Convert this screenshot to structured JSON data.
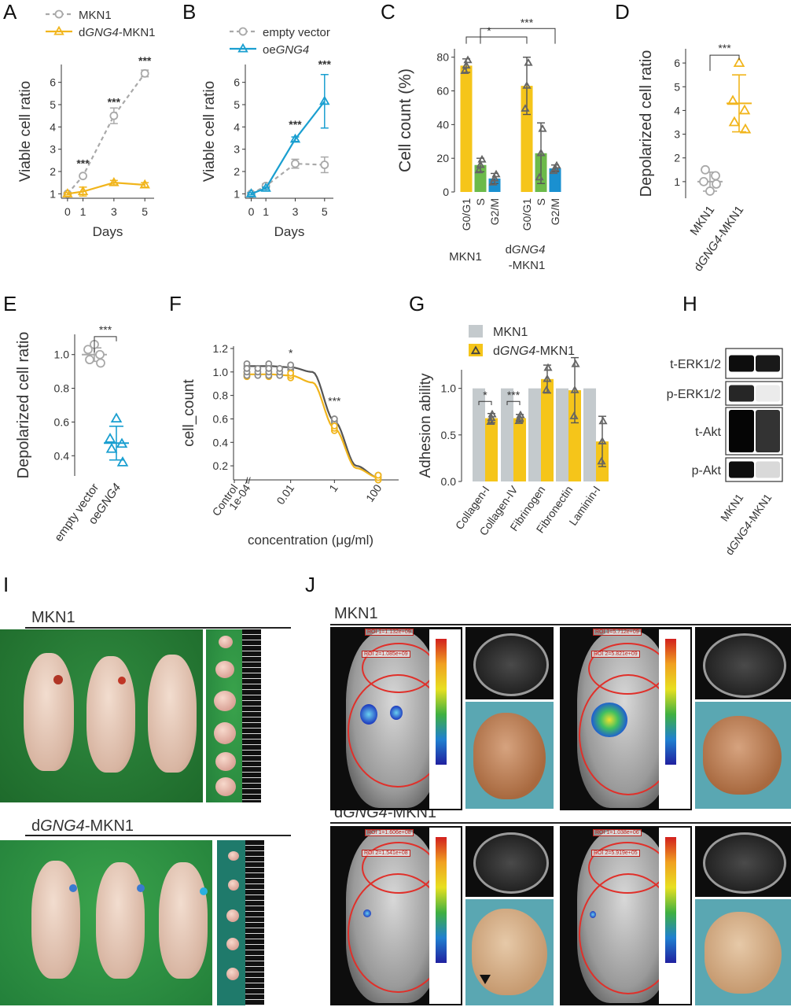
{
  "panels": {
    "A": {
      "label": "A",
      "chart_data": {
        "type": "line",
        "x": [
          0,
          1,
          3,
          5
        ],
        "xlabel": "Days",
        "ylabel": "Viable cell ratio",
        "ylim": [
          0.8,
          6.8
        ],
        "yticks": [
          1,
          2,
          3,
          4,
          5,
          6
        ],
        "series": [
          {
            "name": "MKN1",
            "values": [
              1.0,
              1.8,
              4.5,
              6.4
            ],
            "err": [
              0.05,
              0.05,
              0.35,
              0.15
            ],
            "color": "#a9a9a9",
            "marker": "circle",
            "dash": true
          },
          {
            "name": "dGNG4-MKN1",
            "values": [
              1.0,
              1.1,
              1.5,
              1.4
            ],
            "err": [
              0.05,
              0.2,
              0.1,
              0.1
            ],
            "color": "#f1b51c",
            "marker": "triangle",
            "dash": false
          }
        ],
        "legend": [
          {
            "prefix": "MKN1",
            "italic": "",
            "suffix": ""
          },
          {
            "prefix": "d",
            "italic": "GNG4",
            "suffix": "-MKN1"
          }
        ],
        "annotations": [
          {
            "x": 1,
            "y": 2.2,
            "text": "***"
          },
          {
            "x": 3,
            "y": 4.95,
            "text": "***"
          },
          {
            "x": 5,
            "y": 6.8,
            "text": "***"
          }
        ]
      }
    },
    "B": {
      "label": "B",
      "chart_data": {
        "type": "line",
        "x": [
          0,
          1,
          3,
          5
        ],
        "xlabel": "Days",
        "ylabel": "Viable cell ratio",
        "ylim": [
          0.8,
          6.8
        ],
        "yticks": [
          1,
          2,
          3,
          4,
          5,
          6
        ],
        "series": [
          {
            "name": "empty vector",
            "values": [
              1.0,
              1.35,
              2.35,
              2.3
            ],
            "err": [
              0.05,
              0.1,
              0.2,
              0.35
            ],
            "color": "#a9a9a9",
            "marker": "circle",
            "dash": true
          },
          {
            "name": "oeGNG4",
            "values": [
              1.0,
              1.25,
              3.45,
              5.15
            ],
            "err": [
              0.05,
              0.05,
              0.1,
              1.2
            ],
            "color": "#1a9fd0",
            "marker": "triangle",
            "dash": false
          }
        ],
        "legend": [
          {
            "prefix": "empty vector",
            "italic": "",
            "suffix": ""
          },
          {
            "prefix": "oe",
            "italic": "GNG4",
            "suffix": ""
          }
        ],
        "annotations": [
          {
            "x": 3,
            "y": 3.95,
            "text": "***"
          },
          {
            "x": 5,
            "y": 6.65,
            "text": "***"
          }
        ]
      }
    },
    "C": {
      "label": "C",
      "chart_data": {
        "type": "bar",
        "ylabel": "Cell count (%)",
        "ylim": [
          0,
          85
        ],
        "yticks": [
          0,
          20,
          40,
          60,
          80
        ],
        "groups": [
          {
            "name_prefix": "MKN1",
            "name_italic": "",
            "name_suffix": "",
            "name_line2": ""
          },
          {
            "name_prefix": "d",
            "name_italic": "GNG4",
            "name_suffix": "",
            "name_line2": "-MKN1"
          }
        ],
        "categories": [
          "G0/G1",
          "S",
          "G2/M",
          "G0/G1",
          "S",
          "G2/M"
        ],
        "values": [
          75,
          16,
          8,
          63,
          23,
          14
        ],
        "err": [
          4,
          4,
          3,
          17,
          18,
          2
        ],
        "colors": [
          "#f5c51a",
          "#6cba4a",
          "#1a90d0",
          "#f5c51a",
          "#6cba4a",
          "#1a90d0"
        ],
        "annotations": [
          {
            "text": "*"
          },
          {
            "text": "***"
          }
        ]
      }
    },
    "D": {
      "label": "D",
      "chart_data": {
        "type": "scatter",
        "ylabel": "Depolarized cell ratio",
        "ylim": [
          0.3,
          6.6
        ],
        "yticks": [
          1,
          2,
          3,
          4,
          5,
          6
        ],
        "categories": [
          {
            "prefix": "MKN1",
            "italic": "",
            "suffix": ""
          },
          {
            "prefix": "d",
            "italic": "GNG4",
            "suffix": "-MKN1"
          }
        ],
        "series": [
          {
            "name": "MKN1",
            "values": [
              0.6,
              1.0,
              1.25,
              1.5,
              0.9
            ],
            "mean": 1.0,
            "sd": 0.4,
            "color": "#a9a9a9",
            "marker": "circle"
          },
          {
            "name": "dGNG4-MKN1",
            "values": [
              6.0,
              4.4,
              4.0,
              3.5,
              3.2
            ],
            "mean": 4.3,
            "sd": 1.2,
            "color": "#f1b51c",
            "marker": "triangle"
          }
        ],
        "annotation": "***"
      }
    },
    "E": {
      "label": "E",
      "chart_data": {
        "type": "scatter",
        "ylabel": "Depolarized cell ratio",
        "ylim": [
          0.28,
          1.12
        ],
        "yticks": [
          0.4,
          0.6,
          0.8,
          1.0
        ],
        "categories": [
          {
            "prefix": "empty vector",
            "italic": "",
            "suffix": ""
          },
          {
            "prefix": "oe",
            "italic": "GNG4",
            "suffix": ""
          }
        ],
        "series": [
          {
            "name": "empty vector",
            "values": [
              1.06,
              1.03,
              1.0,
              0.97,
              0.95
            ],
            "mean": 1.0,
            "sd": 0.04,
            "color": "#a9a9a9",
            "marker": "circle"
          },
          {
            "name": "oeGNG4",
            "values": [
              0.62,
              0.5,
              0.47,
              0.44,
              0.36
            ],
            "mean": 0.475,
            "sd": 0.1,
            "color": "#1a9fd0",
            "marker": "triangle"
          }
        ],
        "annotation": "***"
      }
    },
    "F": {
      "label": "F",
      "chart_data": {
        "type": "line",
        "xlabel": "concentration (μg/ml)",
        "ylabel": "cell_count",
        "xticks": [
          "Control",
          "1e-04",
          "0.01",
          "1",
          "100"
        ],
        "ylim": [
          0.08,
          1.22
        ],
        "yticks": [
          0.2,
          0.4,
          0.6,
          0.8,
          1.0,
          1.2
        ],
        "series": [
          {
            "name": "grey",
            "color": "#555555",
            "points": [
              [
                -4,
                1.05
              ],
              [
                -3,
                1.05
              ],
              [
                -2,
                1.04
              ],
              [
                -1,
                1.0
              ],
              [
                0,
                0.58
              ],
              [
                1,
                0.2
              ],
              [
                2,
                0.1
              ]
            ]
          },
          {
            "name": "yellow",
            "color": "#f1b51c",
            "points": [
              [
                -4,
                0.98
              ],
              [
                -3,
                0.98
              ],
              [
                -2,
                0.97
              ],
              [
                -1,
                0.91
              ],
              [
                0,
                0.52
              ],
              [
                1,
                0.18
              ],
              [
                2,
                0.1
              ]
            ]
          }
        ],
        "annotations": [
          {
            "text": "*"
          },
          {
            "text": "***"
          }
        ]
      }
    },
    "G": {
      "label": "G",
      "chart_data": {
        "type": "bar",
        "ylabel": "Adhesion ability",
        "ylim": [
          0,
          1.2
        ],
        "yticks": [
          0.0,
          0.5,
          1.0
        ],
        "categories": [
          "Collagen-I",
          "Collagen-IV",
          "Fibrinogen",
          "Fibronectin",
          "Laminin-I"
        ],
        "series": [
          {
            "name": "MKN1",
            "values": [
              1,
              1,
              1,
              1,
              1
            ],
            "color": "#c4cacd"
          },
          {
            "name": "dGNG4-MKN1",
            "values": [
              0.68,
              0.68,
              1.1,
              0.98,
              0.43
            ],
            "err": [
              0.05,
              0.04,
              0.15,
              0.35,
              0.27
            ],
            "color": "#f5c51a"
          }
        ],
        "legend": [
          {
            "prefix": "MKN1",
            "italic": "",
            "suffix": ""
          },
          {
            "prefix": "d",
            "italic": "GNG4",
            "suffix": "-MKN1"
          }
        ],
        "annotations": [
          {
            "text": "*"
          },
          {
            "text": "***"
          }
        ]
      }
    },
    "H": {
      "label": "H",
      "rows": [
        "t-ERK1/2",
        "p-ERK1/2",
        "t-Akt",
        "p-Akt"
      ],
      "lanes": [
        {
          "prefix": "MKN1",
          "italic": "",
          "suffix": ""
        },
        {
          "prefix": "d",
          "italic": "GNG4",
          "suffix": "-MKN1"
        }
      ]
    },
    "I": {
      "label": "I",
      "title1": {
        "prefix": "MKN1",
        "italic": "",
        "suffix": ""
      },
      "title2": {
        "prefix": "d",
        "italic": "GNG4",
        "suffix": "-MKN1"
      }
    },
    "J": {
      "label": "J",
      "title1": {
        "prefix": "MKN1",
        "italic": "",
        "suffix": ""
      },
      "title2": {
        "prefix": "d",
        "italic": "GNG4",
        "suffix": "-MKN1"
      },
      "roi": [
        [
          "ROI 1=1.132e+09",
          "ROI 2=1.085e+09"
        ],
        [
          "ROI 1=5.712e+09",
          "ROI 2=5.821e+09"
        ],
        [
          "ROI 1=1.606e+08",
          "ROI 2=1.541e+08"
        ],
        [
          "ROI 1=1.038e+06",
          "ROI 2=5.919e+05"
        ]
      ]
    }
  }
}
